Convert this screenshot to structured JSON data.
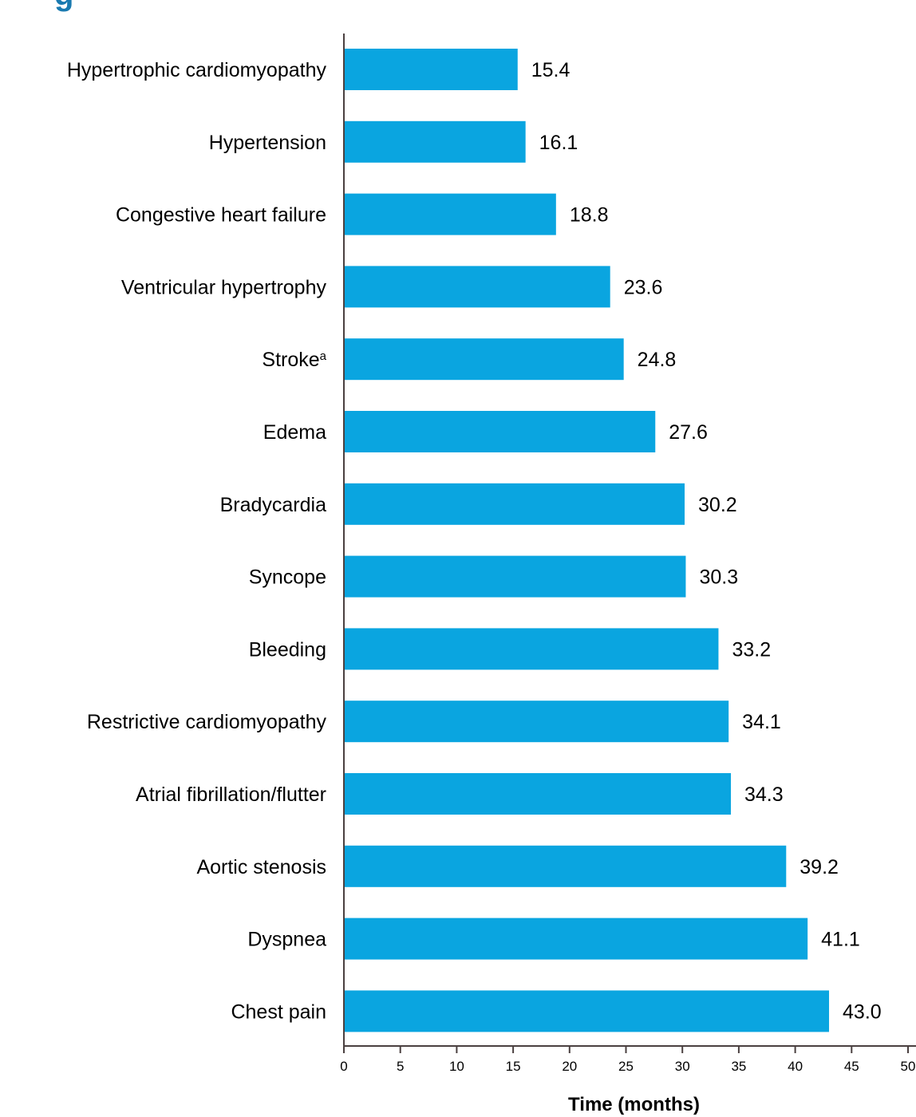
{
  "header": {
    "title_fragment": "g"
  },
  "chart_data": {
    "type": "bar",
    "orientation": "horizontal",
    "categories": [
      "Hypertrophic cardiomyopathy",
      "Hypertension",
      "Congestive heart failure",
      "Ventricular hypertrophy",
      "Stroke",
      "Edema",
      "Bradycardia",
      "Syncope",
      "Bleeding",
      "Restrictive cardiomyopathy",
      "Atrial fibrillation/flutter",
      "Aortic stenosis",
      "Dyspnea",
      "Chest pain"
    ],
    "category_superscripts": [
      "",
      "",
      "",
      "",
      "a",
      "",
      "",
      "",
      "",
      "",
      "",
      "",
      "",
      ""
    ],
    "values": [
      15.4,
      16.1,
      18.8,
      23.6,
      24.8,
      27.6,
      30.2,
      30.3,
      33.2,
      34.1,
      34.3,
      39.2,
      41.1,
      43.0
    ],
    "value_labels": [
      "15.4",
      "16.1",
      "18.8",
      "23.6",
      "24.8",
      "27.6",
      "30.2",
      "30.3",
      "33.2",
      "34.1",
      "34.3",
      "39.2",
      "41.1",
      "43.0"
    ],
    "xlabel": "Time (months)",
    "ylabel": "",
    "xlim": [
      0,
      50
    ],
    "x_ticks": [
      0,
      5,
      10,
      15,
      20,
      25,
      30,
      35,
      40,
      45,
      50
    ],
    "x_tick_labels": [
      "0",
      "5",
      "10",
      "15",
      "20",
      "25",
      "30",
      "35",
      "40",
      "45",
      "50"
    ],
    "grid": false,
    "legend": "none",
    "colors": {
      "bar": "#0AA5E0",
      "axis": "#4a4040",
      "title": "#1a7ab0"
    }
  }
}
